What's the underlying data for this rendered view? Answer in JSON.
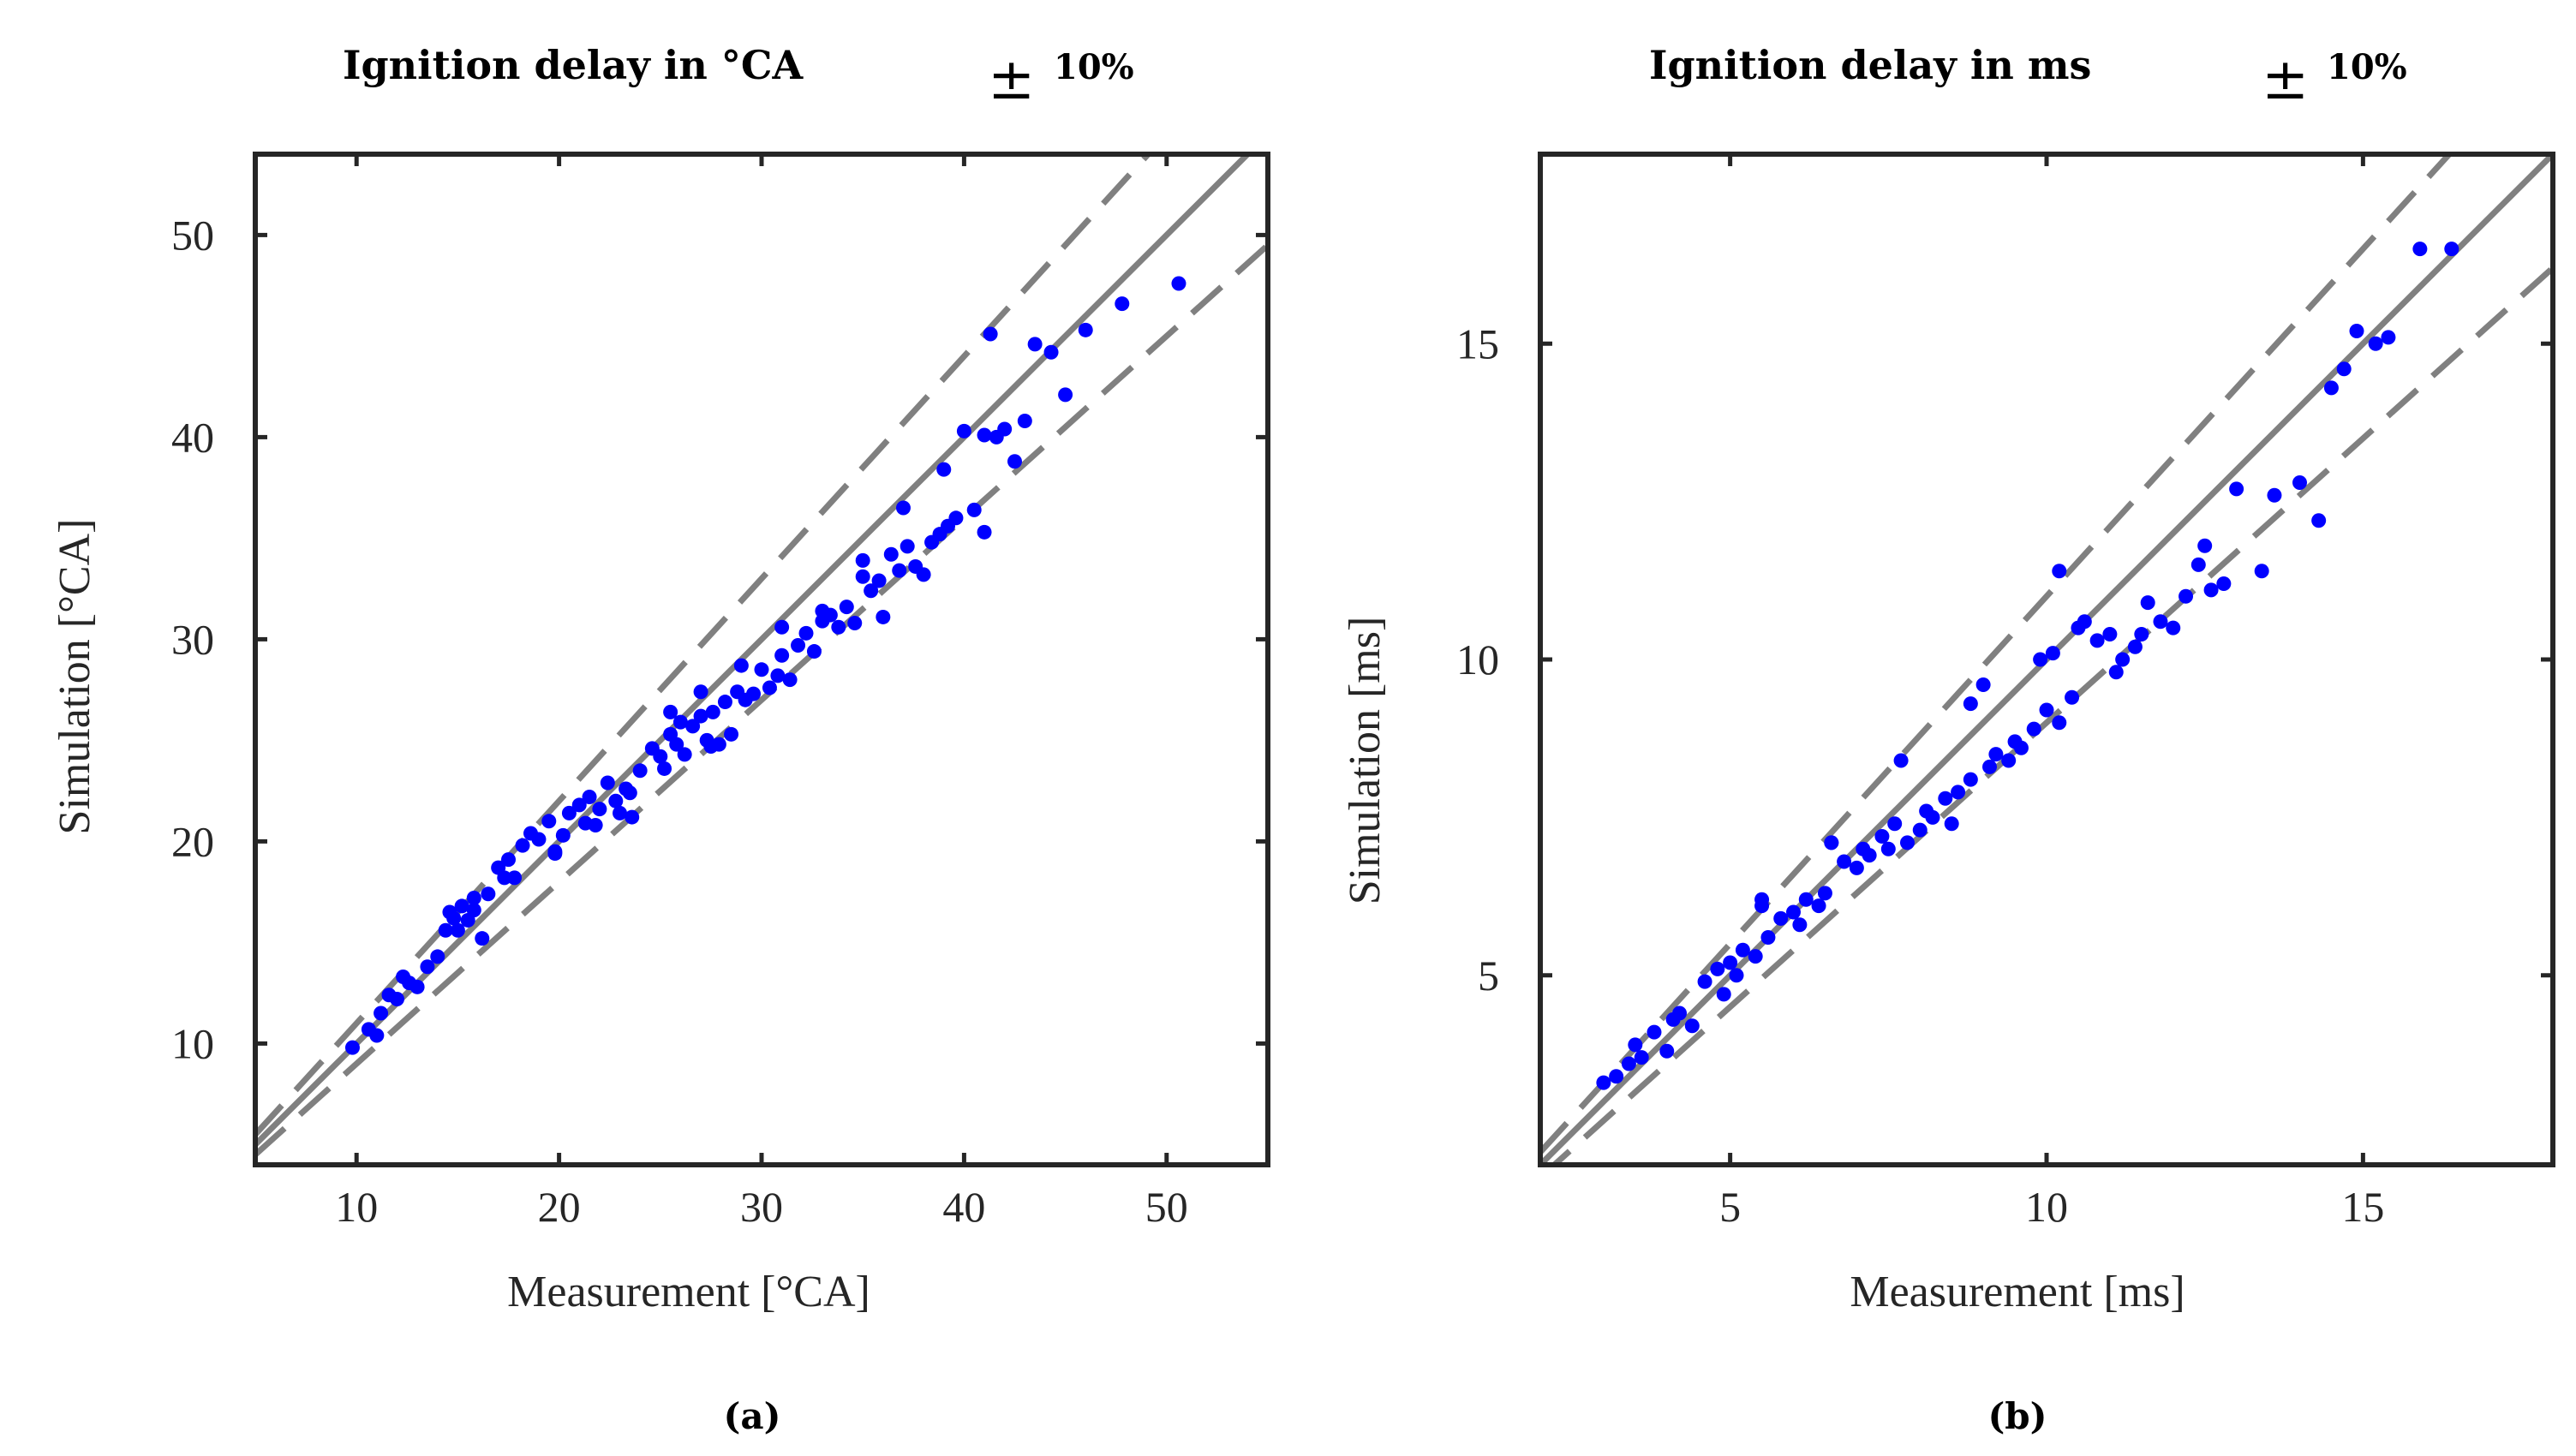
{
  "chart_data": [
    {
      "type": "scatter",
      "title": "Ignition delay in °CA",
      "tolerance_symbol": "±",
      "tolerance_label": "10%",
      "xlabel": "Measurement [°CA]",
      "ylabel": "Simulation [°CA]",
      "panel_label": "(a)",
      "xlim": [
        5,
        55
      ],
      "ylim": [
        4,
        54
      ],
      "xticks": [
        10,
        20,
        30,
        40,
        50
      ],
      "yticks": [
        10,
        20,
        30,
        40,
        50
      ],
      "reference_lines": [
        {
          "name": "ideal",
          "slope": 1.0,
          "style": "solid",
          "color": "#808080"
        },
        {
          "name": "+10%",
          "slope": 1.1,
          "style": "dashed",
          "color": "#808080"
        },
        {
          "name": "-10%",
          "slope": 0.9,
          "style": "dashed",
          "color": "#808080"
        }
      ],
      "marker_color": "#0000ff",
      "series": [
        {
          "name": "data",
          "x": [
            9.8,
            10.6,
            11.0,
            11.2,
            11.6,
            12.0,
            12.3,
            12.6,
            13.0,
            13.5,
            14.0,
            14.4,
            14.6,
            14.8,
            15.0,
            15.2,
            15.5,
            15.8,
            16.2,
            16.5,
            17.0,
            17.5,
            17.8,
            18.2,
            18.6,
            19.0,
            19.5,
            19.8,
            20.2,
            20.5,
            21.0,
            21.5,
            21.8,
            22.0,
            22.4,
            22.8,
            23.0,
            23.3,
            23.6,
            24.0,
            24.6,
            25.0,
            25.2,
            25.5,
            25.8,
            26.0,
            26.2,
            26.6,
            27.0,
            27.3,
            27.6,
            27.9,
            28.2,
            28.5,
            28.8,
            29.2,
            29.6,
            30.0,
            30.4,
            30.8,
            31.0,
            31.4,
            31.8,
            32.2,
            32.6,
            33.0,
            33.4,
            33.8,
            34.2,
            34.6,
            35.0,
            35.4,
            35.8,
            36.0,
            36.4,
            36.8,
            37.2,
            37.6,
            38.0,
            38.4,
            38.8,
            39.2,
            39.6,
            40.0,
            40.5,
            41.0,
            41.3,
            41.6,
            42.0,
            42.5,
            43.0,
            43.5,
            44.3,
            45.0,
            46.0,
            47.8,
            50.6,
            25.5,
            27.0,
            29.0,
            31.0,
            33.0,
            35.0,
            37.0,
            39.0,
            41.0,
            15.8,
            17.3,
            19.8,
            21.3,
            23.5,
            27.5
          ],
          "y": [
            9.8,
            10.7,
            10.4,
            11.5,
            12.4,
            12.2,
            13.3,
            13.0,
            12.8,
            13.8,
            14.3,
            15.6,
            16.5,
            16.2,
            15.6,
            16.8,
            16.1,
            16.6,
            15.2,
            17.4,
            18.7,
            19.1,
            18.2,
            19.8,
            20.4,
            20.1,
            21.0,
            19.5,
            20.3,
            21.4,
            21.8,
            22.2,
            20.8,
            21.6,
            22.9,
            22.0,
            21.4,
            22.6,
            21.2,
            23.5,
            24.6,
            24.2,
            23.6,
            25.3,
            24.8,
            25.9,
            24.3,
            25.7,
            26.2,
            25.0,
            26.4,
            24.8,
            26.9,
            25.3,
            27.4,
            27.0,
            27.3,
            28.5,
            27.6,
            28.2,
            29.2,
            28.0,
            29.7,
            30.3,
            29.4,
            30.9,
            31.2,
            30.6,
            31.6,
            30.8,
            33.1,
            32.4,
            32.9,
            31.1,
            34.2,
            33.4,
            34.6,
            33.6,
            33.2,
            34.8,
            35.2,
            35.6,
            36.0,
            40.3,
            36.4,
            35.3,
            45.1,
            40.0,
            40.4,
            38.8,
            40.8,
            44.6,
            44.2,
            42.1,
            45.3,
            46.6,
            47.6,
            26.4,
            27.4,
            28.7,
            30.6,
            31.4,
            33.9,
            36.5,
            38.4,
            40.1,
            17.2,
            18.2,
            19.4,
            20.9,
            22.4,
            24.7
          ]
        }
      ]
    },
    {
      "type": "scatter",
      "title": "Ignition delay in ms",
      "tolerance_symbol": "±",
      "tolerance_label": "10%",
      "xlabel": "Measurement [ms]",
      "ylabel": "Simulation [ms]",
      "panel_label": "(b)",
      "xlim": [
        2,
        18
      ],
      "ylim": [
        2,
        18
      ],
      "xticks": [
        5,
        10,
        15
      ],
      "yticks": [
        5,
        10,
        15
      ],
      "reference_lines": [
        {
          "name": "ideal",
          "slope": 1.0,
          "style": "solid",
          "color": "#808080"
        },
        {
          "name": "+10%",
          "slope": 1.1,
          "style": "dashed",
          "color": "#808080"
        },
        {
          "name": "-10%",
          "slope": 0.9,
          "style": "dashed",
          "color": "#808080"
        }
      ],
      "marker_color": "#0000ff",
      "series": [
        {
          "name": "data",
          "x": [
            3.0,
            3.2,
            3.4,
            3.5,
            3.6,
            3.8,
            4.0,
            4.1,
            4.2,
            4.4,
            4.6,
            4.8,
            4.9,
            5.0,
            5.1,
            5.2,
            5.4,
            5.5,
            5.6,
            5.8,
            6.0,
            6.1,
            6.2,
            6.4,
            6.5,
            6.6,
            6.8,
            7.0,
            7.1,
            7.2,
            7.4,
            7.5,
            7.6,
            7.8,
            8.0,
            8.1,
            8.2,
            8.4,
            8.5,
            8.6,
            8.8,
            9.0,
            9.1,
            9.2,
            9.4,
            9.5,
            9.6,
            9.8,
            10.0,
            10.1,
            10.2,
            10.4,
            10.5,
            10.6,
            10.8,
            11.0,
            11.2,
            11.4,
            11.5,
            11.6,
            11.8,
            12.0,
            12.2,
            12.4,
            12.5,
            12.6,
            12.8,
            13.0,
            13.4,
            13.6,
            14.0,
            14.3,
            14.5,
            14.7,
            14.9,
            15.2,
            15.4,
            15.9,
            16.4,
            5.5,
            6.6,
            7.7,
            8.8,
            9.9,
            11.1,
            10.2
          ],
          "y": [
            3.3,
            3.4,
            3.6,
            3.9,
            3.7,
            4.1,
            3.8,
            4.3,
            4.4,
            4.2,
            4.9,
            5.1,
            4.7,
            5.2,
            5.0,
            5.4,
            5.3,
            6.1,
            5.6,
            5.9,
            6.0,
            5.8,
            6.2,
            6.1,
            6.3,
            7.1,
            6.8,
            6.7,
            7.0,
            6.9,
            7.2,
            7.0,
            7.4,
            7.1,
            7.3,
            7.6,
            7.5,
            7.8,
            7.4,
            7.9,
            8.1,
            9.6,
            8.3,
            8.5,
            8.4,
            8.7,
            8.6,
            8.9,
            9.2,
            10.1,
            9.0,
            9.4,
            10.5,
            10.6,
            10.3,
            10.4,
            10.0,
            10.2,
            10.4,
            10.9,
            10.6,
            10.5,
            11.0,
            11.5,
            11.8,
            11.1,
            11.2,
            12.7,
            11.4,
            12.6,
            12.8,
            12.2,
            14.3,
            14.6,
            15.2,
            15.0,
            15.1,
            16.5,
            16.5,
            6.2,
            7.1,
            8.4,
            9.3,
            10.0,
            9.8,
            11.4
          ]
        }
      ]
    }
  ]
}
